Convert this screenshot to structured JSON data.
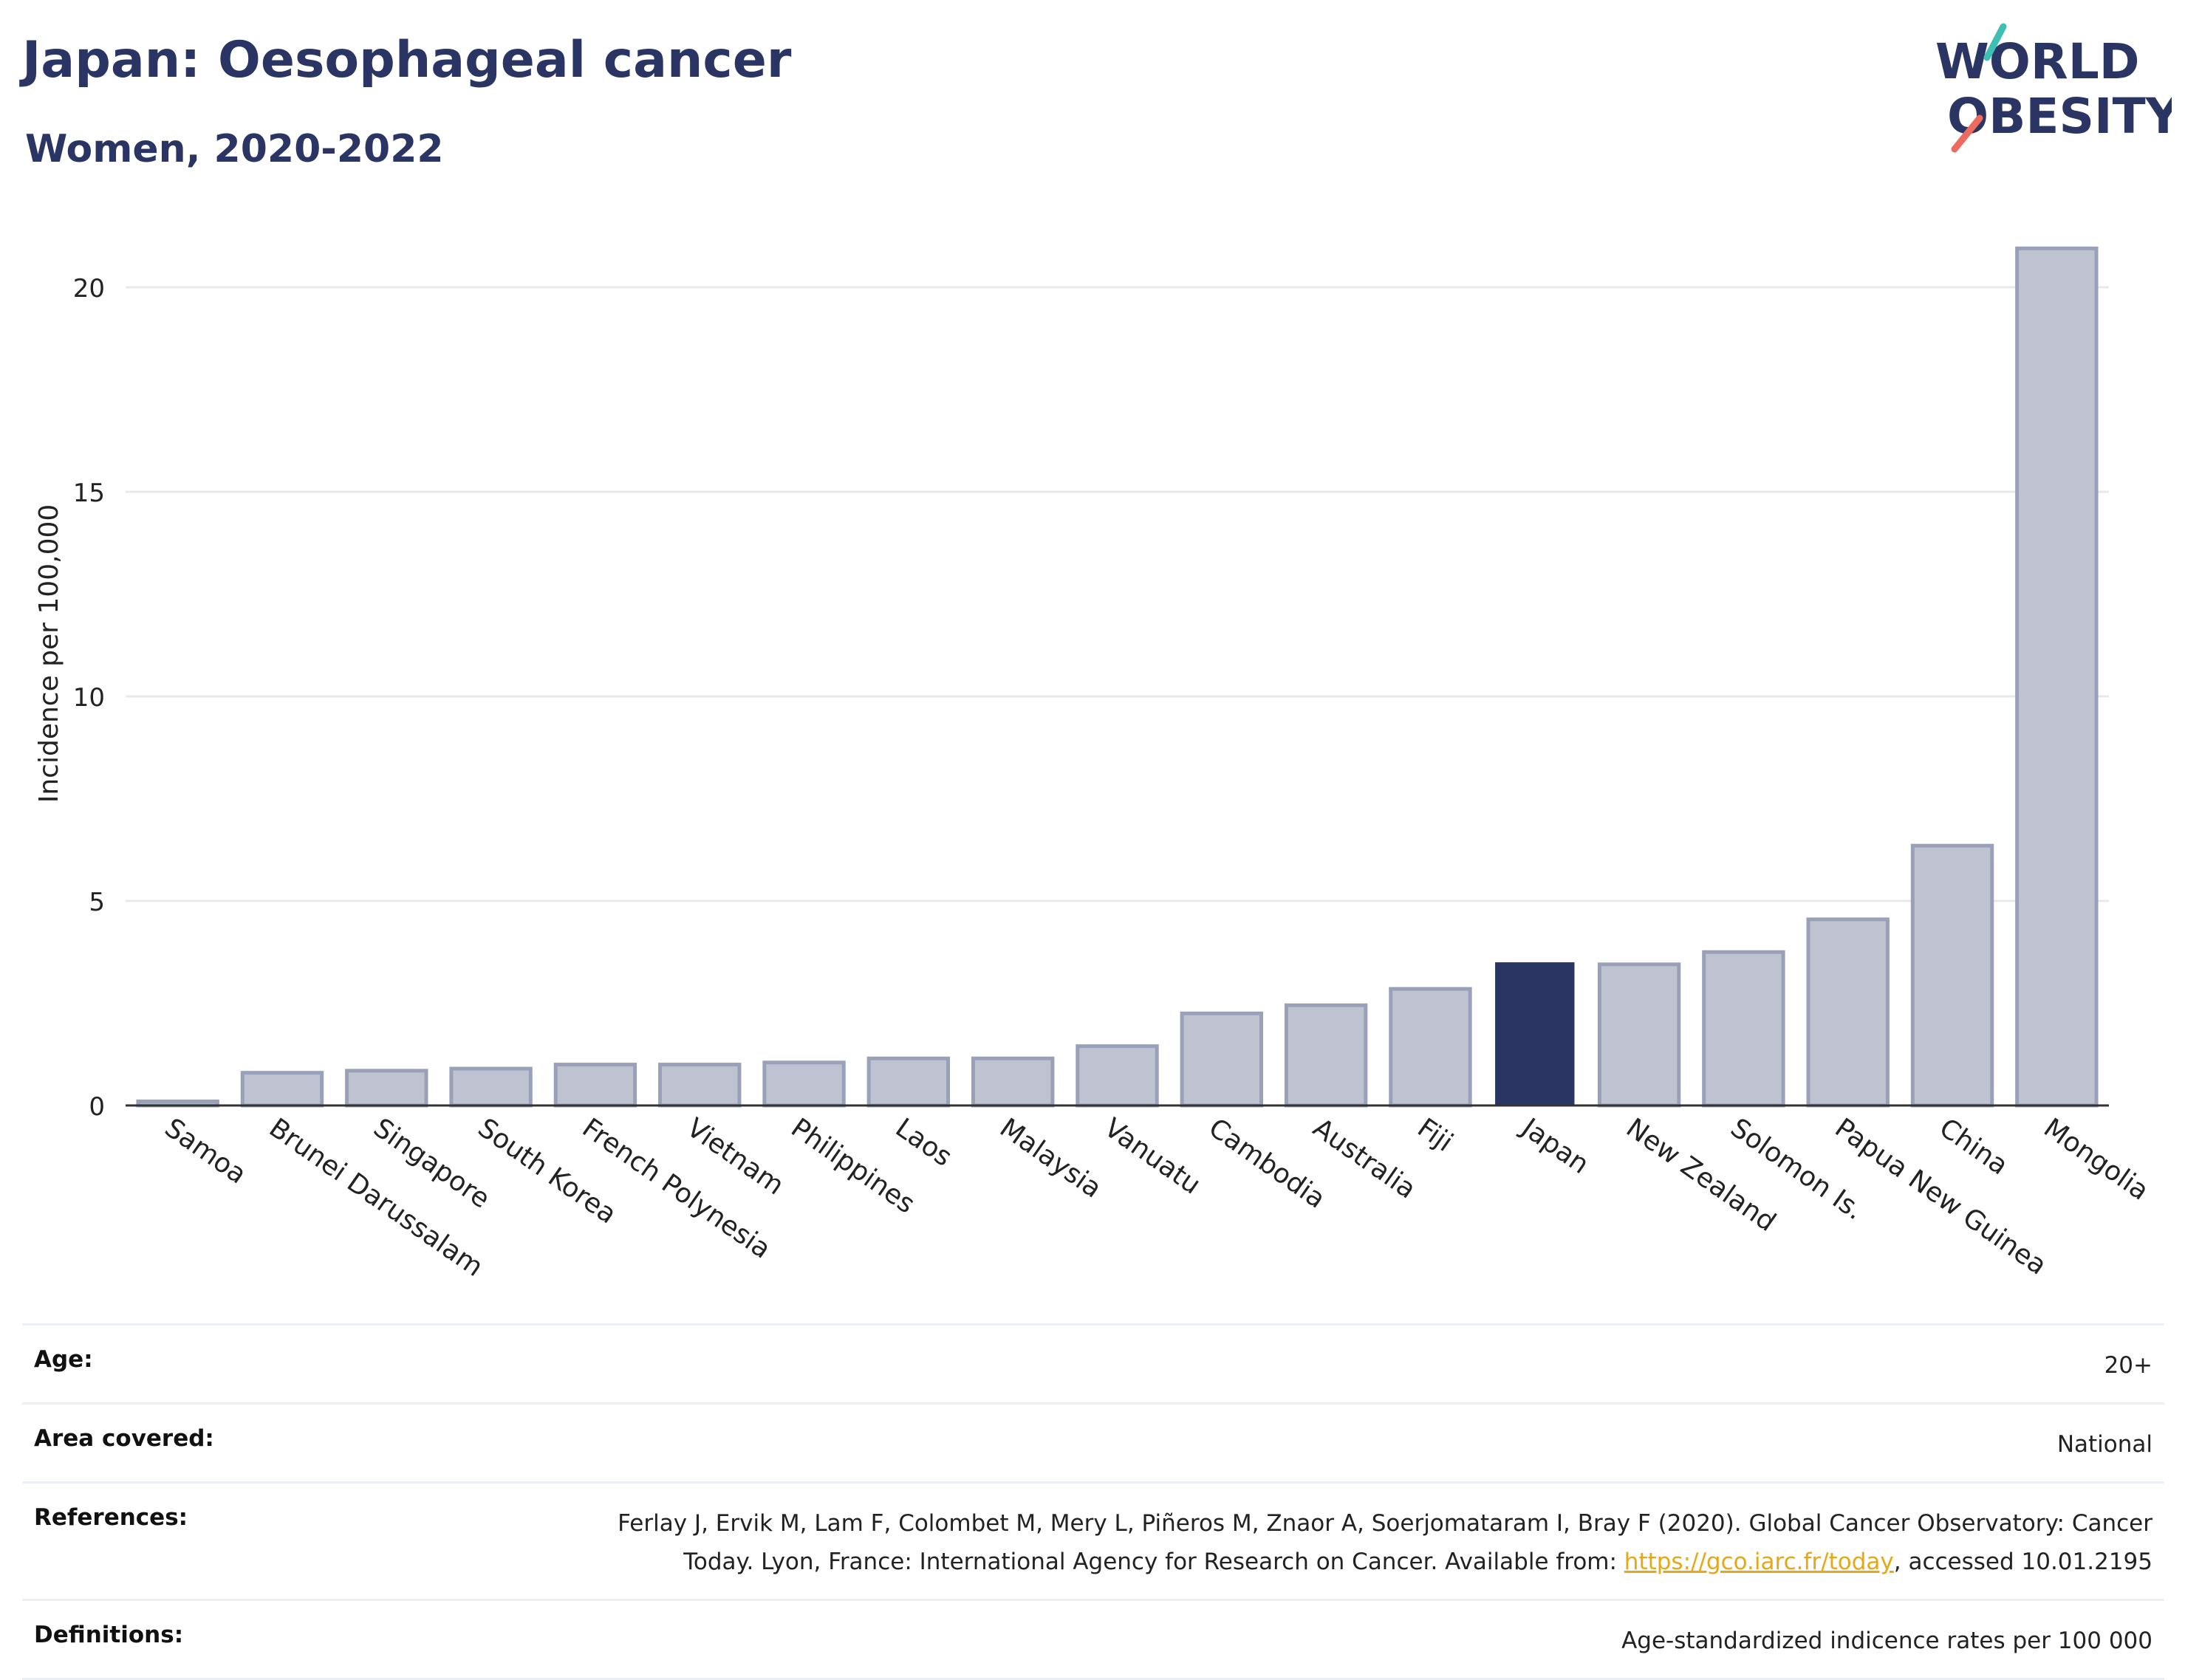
{
  "header": {
    "title": "Japan: Oesophageal cancer",
    "subtitle": "Women, 2020-2022"
  },
  "logo": {
    "line1": "WORLD",
    "line2": "OBESITY",
    "color": "#2a3563",
    "accent_teal": "#3fbfb3",
    "accent_coral": "#ec6a5e"
  },
  "chart_data": {
    "type": "bar",
    "ylabel": "Incidence per 100,000",
    "xlabel": "",
    "ylim": [
      0,
      22
    ],
    "yticks": [
      0,
      5,
      10,
      15,
      20
    ],
    "grid": true,
    "categories": [
      "Samoa",
      "Brunei Darussalam",
      "Singapore",
      "South Korea",
      "French Polynesia",
      "Vietnam",
      "Philippines",
      "Laos",
      "Malaysia",
      "Vanuatu",
      "Cambodia",
      "Australia",
      "Fiji",
      "Japan",
      "New Zealand",
      "Solomon Is.",
      "Papua New Guinea",
      "China",
      "Mongolia"
    ],
    "values": [
      0.1,
      0.8,
      0.85,
      0.9,
      1.0,
      1.0,
      1.05,
      1.15,
      1.15,
      1.45,
      2.25,
      2.45,
      2.85,
      3.5,
      3.45,
      3.75,
      4.55,
      6.35,
      20.95
    ],
    "highlight": "Japan",
    "colors": {
      "bar": "#bfc3d1",
      "bar_edge": "#9aa0b8",
      "highlight": "#2a3563",
      "grid": "#e6e8ee"
    }
  },
  "meta": [
    {
      "label": "Age:",
      "value": "20+"
    },
    {
      "label": "Area covered:",
      "value": "National"
    },
    {
      "label": "References:",
      "value_pre": "Ferlay J, Ervik M, Lam F, Colombet M, Mery L, Piñeros M, Znaor A, Soerjomataram I, Bray F (2020). Global Cancer Observatory: Cancer Today. Lyon, France: International Agency for Research on Cancer. Available from: ",
      "link": "https://gco.iarc.fr/today",
      "value_post": ", accessed 10.01.2195"
    },
    {
      "label": "Definitions:",
      "value": "Age-standardized indicence rates per 100 000"
    }
  ]
}
